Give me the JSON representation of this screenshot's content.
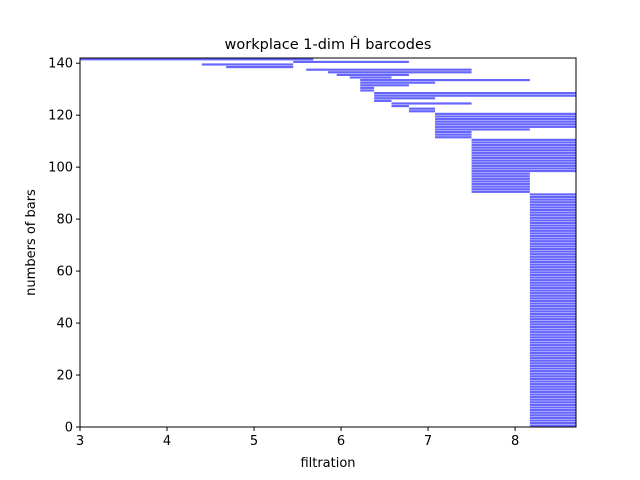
{
  "chart_data": {
    "type": "barcode",
    "title": "workplace 1-dim Ĥ barcodes",
    "xlabel": "filtration",
    "ylabel": "numbers of bars",
    "xlim": [
      3.0,
      8.7
    ],
    "ylim": [
      0,
      142
    ],
    "xticks": [
      3,
      4,
      5,
      6,
      7,
      8
    ],
    "yticks": [
      0,
      20,
      40,
      60,
      80,
      100,
      120,
      140
    ],
    "grid": false,
    "legend": "none",
    "bar_color": "#6666ff",
    "bars": [
      {
        "group": 1,
        "start": 8.17,
        "end": 8.7,
        "count": 90
      },
      {
        "group": 2,
        "start": 7.5,
        "end": 8.17,
        "count": 8
      },
      {
        "group": 3,
        "start": 7.5,
        "end": 8.7,
        "count": 13
      },
      {
        "group": 4,
        "start": 7.08,
        "end": 7.5,
        "count": 3
      },
      {
        "group": 5,
        "start": 7.08,
        "end": 8.17,
        "count": 1
      },
      {
        "group": 6,
        "start": 7.08,
        "end": 8.7,
        "count": 6
      },
      {
        "group": 7,
        "start": 6.78,
        "end": 7.08,
        "count": 2
      },
      {
        "group": 8,
        "start": 6.58,
        "end": 6.78,
        "count": 1
      },
      {
        "group": 9,
        "start": 6.58,
        "end": 7.5,
        "count": 1
      },
      {
        "group": 10,
        "start": 6.38,
        "end": 6.58,
        "count": 1
      },
      {
        "group": 11,
        "start": 6.38,
        "end": 7.08,
        "count": 1
      },
      {
        "group": 12,
        "start": 6.38,
        "end": 8.7,
        "count": 2
      },
      {
        "group": 13,
        "start": 6.22,
        "end": 6.38,
        "count": 2
      },
      {
        "group": 14,
        "start": 6.22,
        "end": 6.78,
        "count": 1
      },
      {
        "group": 15,
        "start": 6.22,
        "end": 7.08,
        "count": 1
      },
      {
        "group": 16,
        "start": 6.22,
        "end": 8.17,
        "count": 1
      },
      {
        "group": 17,
        "start": 6.1,
        "end": 6.58,
        "count": 1
      },
      {
        "group": 18,
        "start": 5.95,
        "end": 6.78,
        "count": 1
      },
      {
        "group": 19,
        "start": 5.85,
        "end": 7.5,
        "count": 1
      },
      {
        "group": 20,
        "start": 5.6,
        "end": 7.5,
        "count": 1
      },
      {
        "group": 21,
        "start": 4.68,
        "end": 5.45,
        "count": 1
      },
      {
        "group": 22,
        "start": 4.4,
        "end": 5.45,
        "count": 1
      },
      {
        "group": 23,
        "start": 5.45,
        "end": 6.78,
        "count": 1
      },
      {
        "group": 24,
        "start": 3.0,
        "end": 5.68,
        "count": 1
      }
    ]
  }
}
